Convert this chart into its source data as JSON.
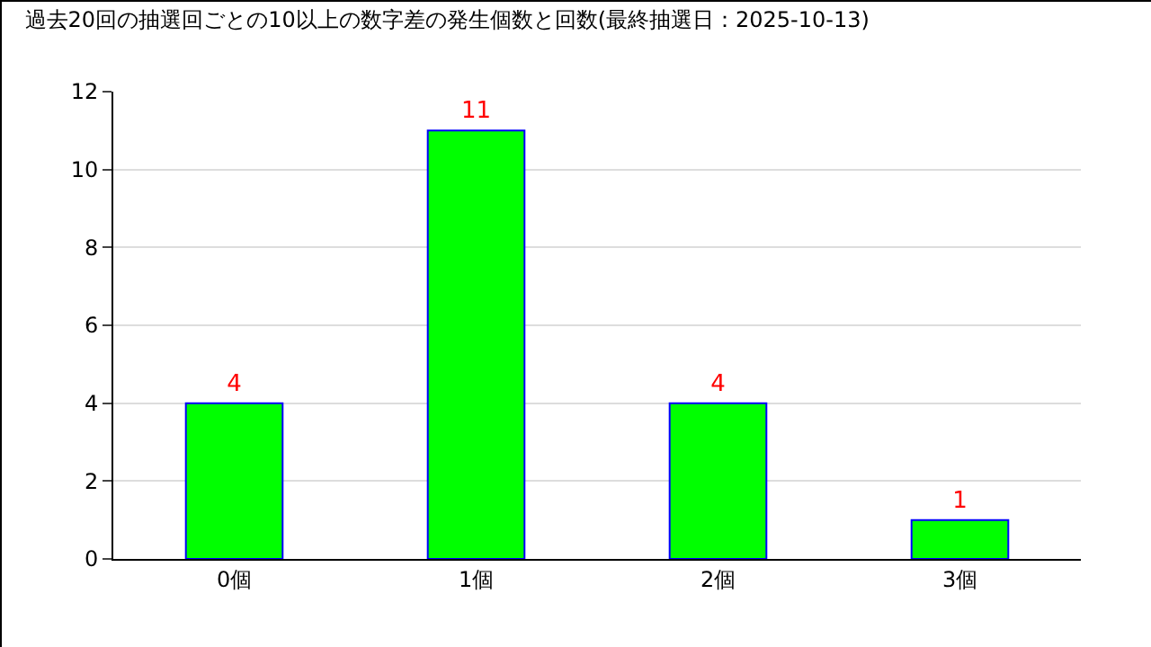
{
  "chart_data": {
    "type": "bar",
    "title": "過去20回の抽選回ごとの10以上の数字差の発生個数と回数(最終抽選日：2025-10-13)",
    "categories": [
      "0個",
      "1個",
      "2個",
      "3個"
    ],
    "values": [
      4,
      11,
      4,
      1
    ],
    "color": "#00ff00",
    "ylim": [
      0,
      12
    ],
    "yticks": [
      0,
      2,
      4,
      6,
      8,
      10,
      12
    ],
    "grid": "y",
    "data_labels": true,
    "legend": false
  }
}
